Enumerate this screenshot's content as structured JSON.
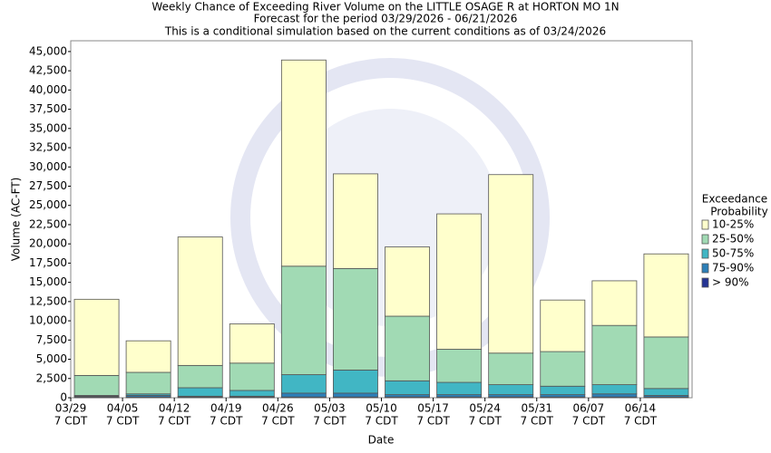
{
  "chart_data": {
    "type": "stacked_bar",
    "title": "Weekly Chance of Exceeding River Volume on the LITTLE OSAGE R at HORTON MO 1N",
    "subtitle": [
      "Forecast for the period 03/29/2026 - 06/21/2026",
      "This is a conditional simulation based on the current conditions as of 03/24/2026"
    ],
    "x_label": "Date",
    "y_label": "Volume (AC-FT)",
    "legend_title": [
      "Exceedance",
      "Probability"
    ],
    "legend_position": "right",
    "categories": [
      [
        "03/29",
        "7 CDT"
      ],
      [
        "04/05",
        "7 CDT"
      ],
      [
        "04/12",
        "7 CDT"
      ],
      [
        "04/19",
        "7 CDT"
      ],
      [
        "04/26",
        "7 CDT"
      ],
      [
        "05/03",
        "7 CDT"
      ],
      [
        "05/10",
        "7 CDT"
      ],
      [
        "05/17",
        "7 CDT"
      ],
      [
        "05/24",
        "7 CDT"
      ],
      [
        "05/31",
        "7 CDT"
      ],
      [
        "06/07",
        "7 CDT"
      ],
      [
        "06/14",
        "7 CDT"
      ]
    ],
    "series": [
      {
        "name": "10-25%",
        "color": "#ffffcc",
        "values": [
          9900,
          4100,
          16700,
          5100,
          26800,
          12300,
          9000,
          17600,
          23200,
          6700,
          5800,
          10800
        ]
      },
      {
        "name": "25-50%",
        "color": "#a1dab4",
        "values": [
          2600,
          2800,
          2900,
          3550,
          14100,
          13200,
          8400,
          4300,
          4100,
          4500,
          7700,
          6700
        ]
      },
      {
        "name": "50-75%",
        "color": "#41b6c4",
        "values": [
          100,
          200,
          1100,
          750,
          2400,
          3000,
          1800,
          1600,
          1300,
          1100,
          1200,
          900
        ]
      },
      {
        "name": "75-90%",
        "color": "#2c7fb8",
        "values": [
          100,
          200,
          100,
          100,
          500,
          500,
          300,
          300,
          300,
          300,
          400,
          200
        ]
      },
      {
        "name": "> 90%",
        "color": "#253494",
        "values": [
          100,
          100,
          100,
          100,
          100,
          100,
          100,
          100,
          100,
          100,
          100,
          100
        ]
      }
    ],
    "ylim": [
      0,
      46400
    ],
    "yticks": [
      0,
      {
        "value": 2500,
        "label": "2,500"
      },
      {
        "value": 5000,
        "label": "5,000"
      },
      {
        "value": 7500,
        "label": "7,500"
      },
      {
        "value": 10000,
        "label": "10,000"
      },
      {
        "value": 12500,
        "label": "12,500"
      },
      {
        "value": 15000,
        "label": "15,000"
      },
      {
        "value": 17500,
        "label": "17,500"
      },
      {
        "value": 20000,
        "label": "20,000"
      },
      {
        "value": 22500,
        "label": "22,500"
      },
      {
        "value": 25000,
        "label": "25,000"
      },
      {
        "value": 27500,
        "label": "27,500"
      },
      {
        "value": 30000,
        "label": "30,000"
      },
      {
        "value": 32500,
        "label": "32,500"
      },
      {
        "value": 35000,
        "label": "35,000"
      },
      {
        "value": 37500,
        "label": "37,500"
      },
      {
        "value": 40000,
        "label": "40,000"
      },
      {
        "value": 42500,
        "label": "42,500"
      },
      {
        "value": 45000,
        "label": "45,000"
      }
    ],
    "grid": false
  }
}
